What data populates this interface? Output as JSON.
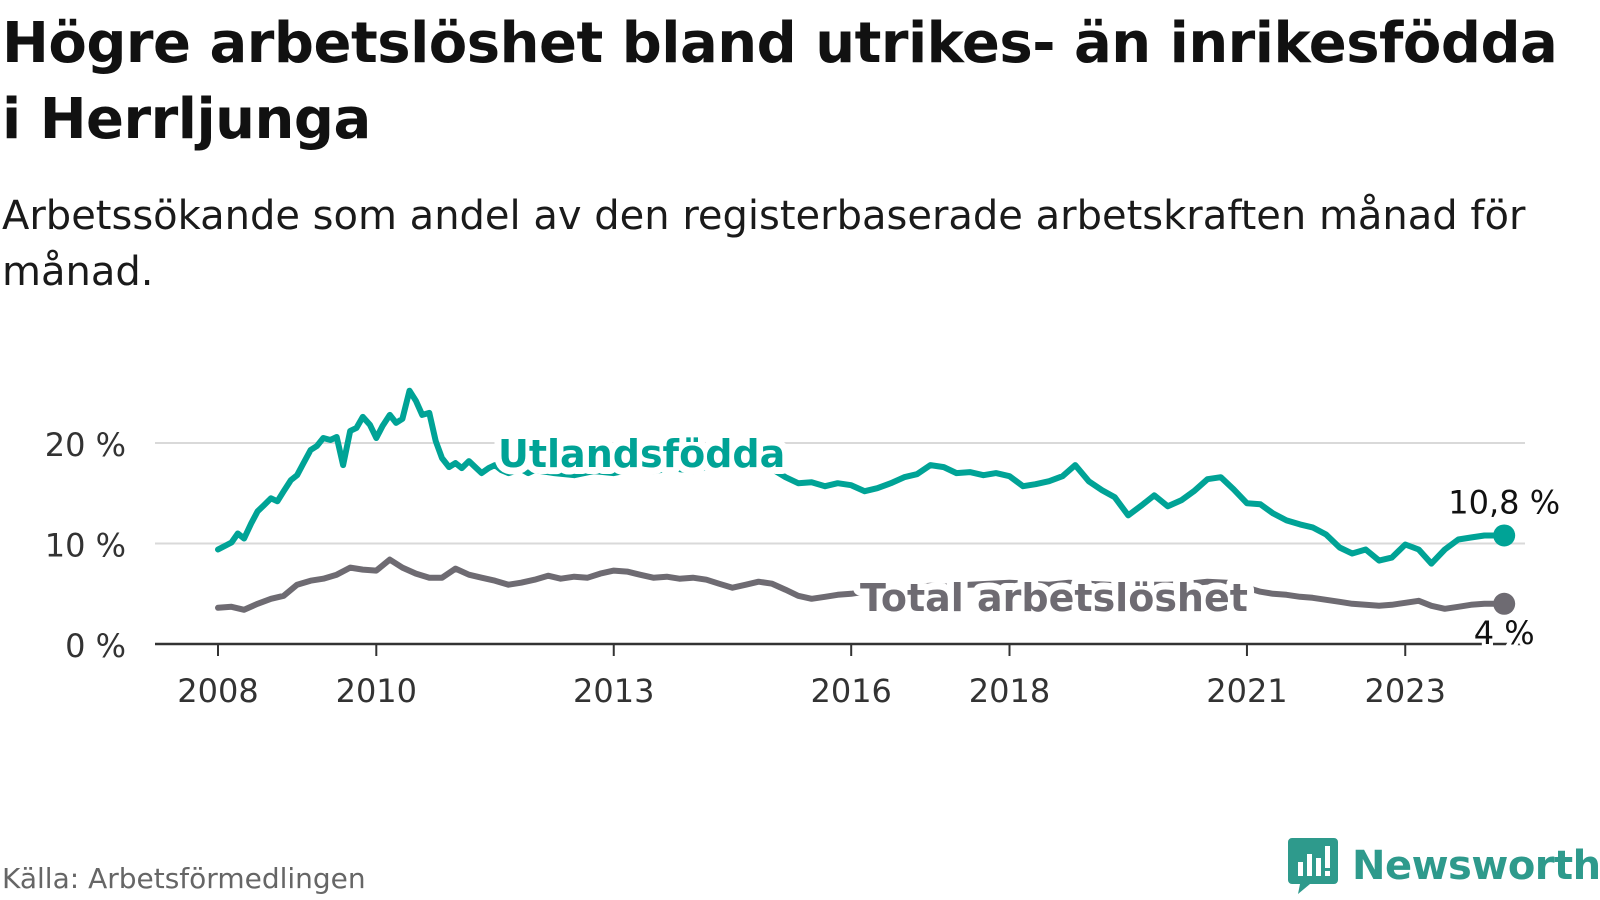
{
  "title": "Högre arbetslöshet bland utrikes- än inrikesfödda i Herrljunga",
  "subtitle": "Arbetssökande som andel av den registerbaserade arbetskraften månad för månad.",
  "source": "Källa: Arbetsförmedlingen",
  "brand": "Newsworthy",
  "chart_data": {
    "type": "line",
    "xlim": [
      2008,
      2024.6
    ],
    "ylim": [
      0,
      25
    ],
    "x_ticks": [
      2008,
      2010,
      2013,
      2016,
      2018,
      2021,
      2023
    ],
    "x_tick_labels": [
      "2008",
      "2010",
      "2013",
      "2016",
      "2018",
      "2021",
      "2023"
    ],
    "y_ticks": [
      0,
      10,
      20
    ],
    "y_tick_labels": [
      "0 %",
      "10 %",
      "20 %"
    ],
    "grid": true,
    "series": [
      {
        "name": "Utlandsfödda",
        "color": "#00a396",
        "end_label": "10,8 %",
        "x": [
          2008.0,
          2008.17,
          2008.25,
          2008.33,
          2008.42,
          2008.5,
          2008.58,
          2008.67,
          2008.75,
          2008.83,
          2008.92,
          2009.0,
          2009.08,
          2009.17,
          2009.25,
          2009.33,
          2009.42,
          2009.5,
          2009.58,
          2009.67,
          2009.75,
          2009.83,
          2009.92,
          2010.0,
          2010.08,
          2010.17,
          2010.25,
          2010.33,
          2010.42,
          2010.5,
          2010.58,
          2010.67,
          2010.75,
          2010.83,
          2010.92,
          2011.0,
          2011.08,
          2011.17,
          2011.25,
          2011.33,
          2011.42,
          2011.5,
          2011.58,
          2011.67,
          2011.75,
          2011.83,
          2011.92,
          2012.0,
          2012.25,
          2012.5,
          2012.75,
          2013.0,
          2013.25,
          2013.5,
          2013.75,
          2014.0,
          2014.25,
          2014.5,
          2014.75,
          2015.0,
          2015.17,
          2015.33,
          2015.5,
          2015.67,
          2015.83,
          2016.0,
          2016.17,
          2016.33,
          2016.5,
          2016.67,
          2016.83,
          2017.0,
          2017.17,
          2017.33,
          2017.5,
          2017.67,
          2017.83,
          2018.0,
          2018.17,
          2018.33,
          2018.5,
          2018.67,
          2018.83,
          2019.0,
          2019.17,
          2019.33,
          2019.5,
          2019.67,
          2019.83,
          2020.0,
          2020.17,
          2020.33,
          2020.5,
          2020.67,
          2020.83,
          2021.0,
          2021.17,
          2021.33,
          2021.5,
          2021.67,
          2021.83,
          2022.0,
          2022.17,
          2022.33,
          2022.5,
          2022.67,
          2022.83,
          2023.0,
          2023.17,
          2023.33,
          2023.5,
          2023.67,
          2023.83,
          2024.0,
          2024.17,
          2024.25
        ],
        "y": [
          9.4,
          10.1,
          11.0,
          10.5,
          12.0,
          13.2,
          13.8,
          14.5,
          14.2,
          15.2,
          16.3,
          16.8,
          18.0,
          19.3,
          19.7,
          20.5,
          20.3,
          20.6,
          17.8,
          21.2,
          21.5,
          22.6,
          21.8,
          20.5,
          21.7,
          22.8,
          22.0,
          22.4,
          25.2,
          24.2,
          22.8,
          23.0,
          20.2,
          18.5,
          17.6,
          18.0,
          17.5,
          18.2,
          17.6,
          17.0,
          17.5,
          17.8,
          17.3,
          17.0,
          17.2,
          17.4,
          17.0,
          17.3,
          17.0,
          16.8,
          17.2,
          17.0,
          17.4,
          17.2,
          17.5,
          17.2,
          17.8,
          17.4,
          17.6,
          17.4,
          16.6,
          16.0,
          16.1,
          15.7,
          16.0,
          15.8,
          15.2,
          15.5,
          16.0,
          16.6,
          16.9,
          17.8,
          17.6,
          17.0,
          17.1,
          16.8,
          17.0,
          16.7,
          15.7,
          15.9,
          16.2,
          16.7,
          17.8,
          16.2,
          15.3,
          14.6,
          12.8,
          13.8,
          14.8,
          13.7,
          14.3,
          15.2,
          16.4,
          16.6,
          15.4,
          14.0,
          13.9,
          13.0,
          12.3,
          11.9,
          11.6,
          10.9,
          9.6,
          9.0,
          9.4,
          8.3,
          8.6,
          9.9,
          9.4,
          8.0,
          9.4,
          10.4,
          10.6,
          10.8,
          10.8,
          10.8
        ]
      },
      {
        "name": "Total arbetslöshet",
        "color": "#6e6b72",
        "end_label": "4 %",
        "x": [
          2008.0,
          2008.17,
          2008.33,
          2008.5,
          2008.67,
          2008.83,
          2009.0,
          2009.17,
          2009.33,
          2009.5,
          2009.67,
          2009.83,
          2010.0,
          2010.17,
          2010.33,
          2010.5,
          2010.67,
          2010.83,
          2011.0,
          2011.17,
          2011.33,
          2011.5,
          2011.67,
          2011.83,
          2012.0,
          2012.17,
          2012.33,
          2012.5,
          2012.67,
          2012.83,
          2013.0,
          2013.17,
          2013.33,
          2013.5,
          2013.67,
          2013.83,
          2014.0,
          2014.17,
          2014.33,
          2014.5,
          2014.67,
          2014.83,
          2015.0,
          2015.17,
          2015.33,
          2015.5,
          2015.67,
          2015.83,
          2016.0,
          2016.17,
          2016.33,
          2016.5,
          2016.67,
          2016.83,
          2017.0,
          2017.25,
          2017.5,
          2017.75,
          2018.0,
          2018.25,
          2018.5,
          2018.75,
          2019.0,
          2019.25,
          2019.5,
          2019.75,
          2020.0,
          2020.25,
          2020.5,
          2020.75,
          2021.0,
          2021.17,
          2021.33,
          2021.5,
          2021.67,
          2021.83,
          2022.0,
          2022.17,
          2022.33,
          2022.5,
          2022.67,
          2022.83,
          2023.0,
          2023.17,
          2023.33,
          2023.5,
          2023.67,
          2023.83,
          2024.0,
          2024.17,
          2024.25
        ],
        "y": [
          3.6,
          3.7,
          3.4,
          4.0,
          4.5,
          4.8,
          5.9,
          6.3,
          6.5,
          6.9,
          7.6,
          7.4,
          7.3,
          8.4,
          7.6,
          7.0,
          6.6,
          6.6,
          7.5,
          6.9,
          6.6,
          6.3,
          5.9,
          6.1,
          6.4,
          6.8,
          6.5,
          6.7,
          6.6,
          7.0,
          7.3,
          7.2,
          6.9,
          6.6,
          6.7,
          6.5,
          6.6,
          6.4,
          6.0,
          5.6,
          5.9,
          6.2,
          6.0,
          5.4,
          4.8,
          4.5,
          4.7,
          4.9,
          5.0,
          5.2,
          5.4,
          5.5,
          5.6,
          5.7,
          5.8,
          5.7,
          5.9,
          6.0,
          6.1,
          6.0,
          5.9,
          6.1,
          6.0,
          5.9,
          5.8,
          5.9,
          5.9,
          6.0,
          6.2,
          6.1,
          5.6,
          5.2,
          5.0,
          4.9,
          4.7,
          4.6,
          4.4,
          4.2,
          4.0,
          3.9,
          3.8,
          3.9,
          4.1,
          4.3,
          3.8,
          3.5,
          3.7,
          3.9,
          4.0,
          4.0,
          4.0
        ]
      }
    ]
  }
}
